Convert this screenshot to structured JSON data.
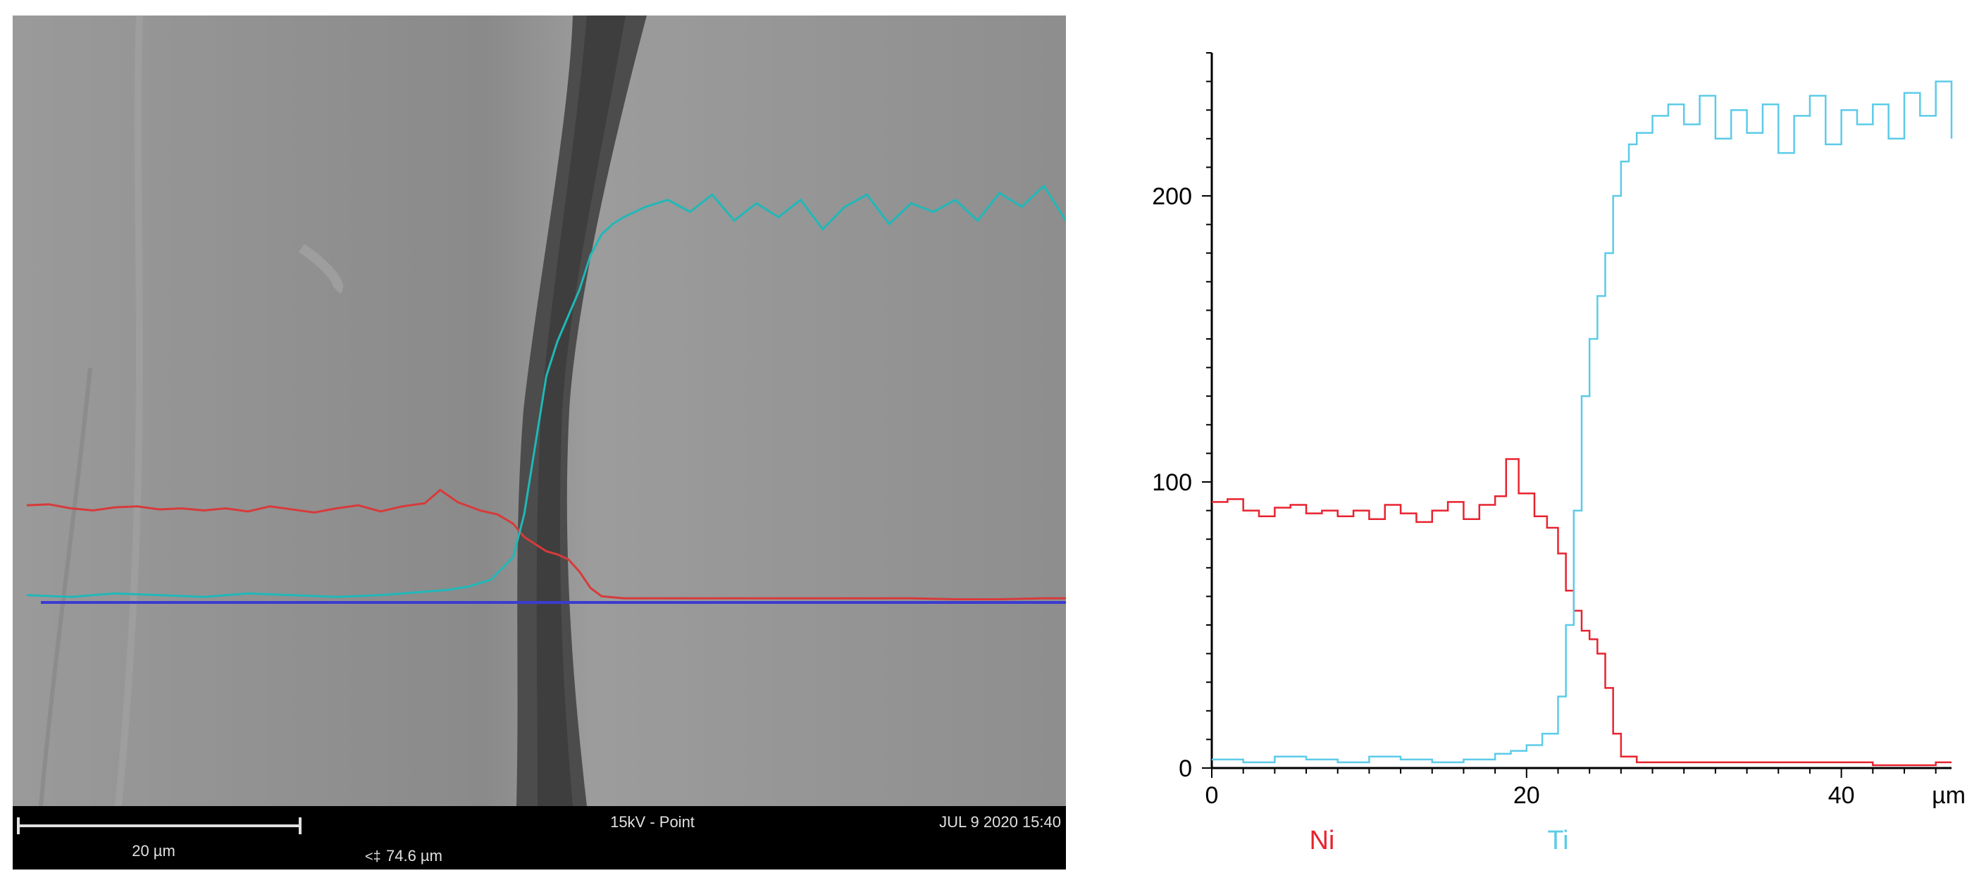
{
  "sem_image": {
    "scale_bar_label": "20 µm",
    "field_width": "74.6 µm",
    "field_width_glyph": "<‡",
    "beam_info": "15kV - Point",
    "timestamp": "JUL 9 2020 15:40",
    "colors": {
      "background": "#8f8f8f",
      "interface_band": "#4a4a4a",
      "ni_trace": "#d83a3a",
      "ti_trace": "#20b8b8",
      "scan_line": "#3b3bd0",
      "info_bar": "#000000",
      "info_text": "#e0e0e0"
    }
  },
  "chart_data": {
    "type": "line",
    "xlabel": "",
    "ylabel": "",
    "x_unit": "µm",
    "xlim": [
      0,
      47
    ],
    "ylim": [
      0,
      250
    ],
    "x_ticks": [
      0,
      20,
      40
    ],
    "y_ticks": [
      0,
      100,
      200
    ],
    "grid": false,
    "legend": "below",
    "series": [
      {
        "name": "Ni",
        "color": "#e8232f",
        "x": [
          0,
          1,
          2,
          3,
          4,
          5,
          6,
          7,
          8,
          9,
          10,
          11,
          12,
          13,
          14,
          15,
          16,
          17,
          18,
          18.7,
          19.5,
          20.5,
          21.3,
          22,
          22.5,
          23,
          23.5,
          24,
          24.5,
          25,
          25.5,
          26,
          27,
          28,
          30,
          32,
          34,
          36,
          38,
          40,
          42,
          44,
          46,
          47
        ],
        "values": [
          93,
          94,
          90,
          88,
          91,
          92,
          89,
          90,
          88,
          90,
          87,
          92,
          89,
          86,
          90,
          93,
          87,
          92,
          95,
          108,
          96,
          88,
          84,
          75,
          62,
          55,
          48,
          45,
          40,
          28,
          12,
          4,
          2,
          2,
          2,
          2,
          2,
          2,
          2,
          2,
          1,
          1,
          2,
          2
        ]
      },
      {
        "name": "Ti",
        "color": "#5ccbe8",
        "x": [
          0,
          2,
          4,
          6,
          8,
          10,
          12,
          14,
          16,
          18,
          19,
          20,
          21,
          22,
          22.5,
          23,
          23.5,
          24,
          24.5,
          25,
          25.5,
          26,
          26.5,
          27,
          28,
          29,
          30,
          31,
          32,
          33,
          34,
          35,
          36,
          37,
          38,
          39,
          40,
          41,
          42,
          43,
          44,
          45,
          46,
          47
        ],
        "values": [
          3,
          2,
          4,
          3,
          2,
          4,
          3,
          2,
          3,
          5,
          6,
          8,
          12,
          25,
          50,
          90,
          130,
          150,
          165,
          180,
          200,
          212,
          218,
          222,
          228,
          232,
          225,
          235,
          220,
          230,
          222,
          232,
          215,
          228,
          235,
          218,
          230,
          225,
          232,
          220,
          236,
          228,
          240,
          220
        ]
      }
    ]
  }
}
